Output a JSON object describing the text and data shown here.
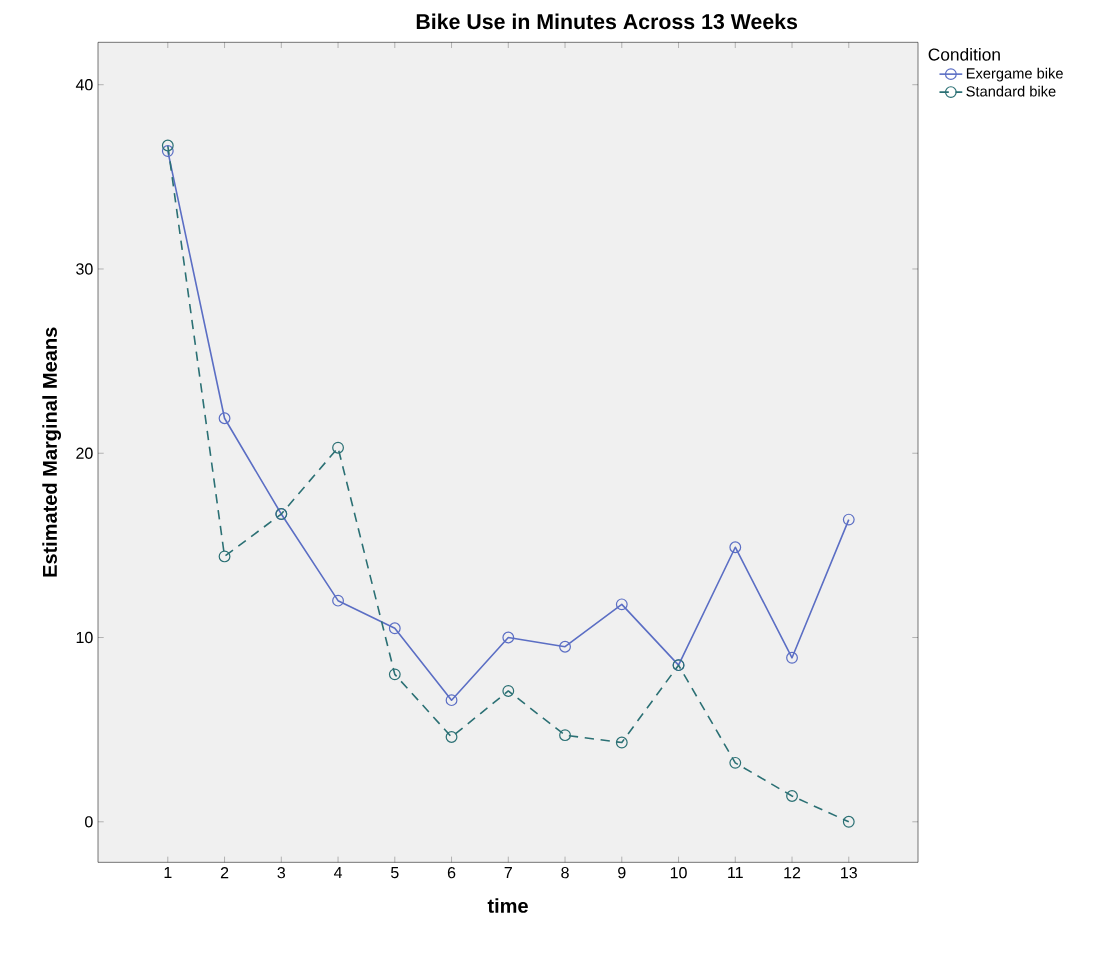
{
  "chart_data": {
    "type": "line",
    "title": "Bike Use in Minutes Across 13 Weeks",
    "xlabel": "time",
    "ylabel": "Estimated Marginal Means",
    "legend_title": "Condition",
    "categories": [
      "1",
      "2",
      "3",
      "4",
      "5",
      "6",
      "7",
      "8",
      "9",
      "10",
      "11",
      "12",
      "13"
    ],
    "series": [
      {
        "name": "Exergame bike",
        "color": "#5b6ec4",
        "line_style": "solid",
        "values": [
          36.4,
          21.9,
          16.7,
          12.0,
          10.5,
          6.6,
          10.0,
          9.5,
          11.8,
          8.5,
          14.9,
          8.9,
          16.4
        ]
      },
      {
        "name": "Standard bike",
        "color": "#2b7074",
        "line_style": "dashed",
        "values": [
          36.7,
          14.4,
          16.7,
          20.3,
          8.0,
          4.6,
          7.1,
          4.7,
          4.3,
          8.5,
          3.2,
          1.4,
          0
        ]
      }
    ],
    "ylim": [
      -2.2,
      42.3
    ],
    "yticks": [
      0,
      10,
      20,
      30,
      40
    ],
    "marker": "circle",
    "legend": "top right",
    "grid": false
  }
}
